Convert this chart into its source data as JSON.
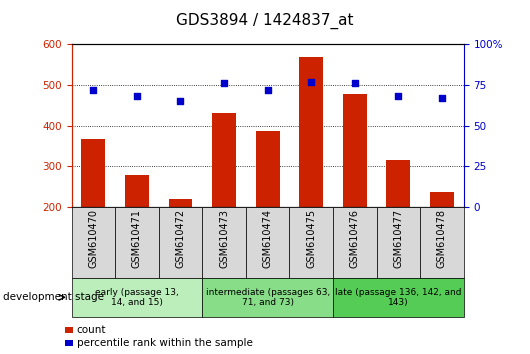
{
  "title": "GDS3894 / 1424837_at",
  "samples": [
    "GSM610470",
    "GSM610471",
    "GSM610472",
    "GSM610473",
    "GSM610474",
    "GSM610475",
    "GSM610476",
    "GSM610477",
    "GSM610478"
  ],
  "counts": [
    368,
    278,
    220,
    430,
    388,
    568,
    478,
    315,
    237
  ],
  "percentile_ranks": [
    72,
    68,
    65,
    76,
    72,
    77,
    76,
    68,
    67
  ],
  "ylim_left": [
    200,
    600
  ],
  "ylim_right": [
    0,
    100
  ],
  "yticks_left": [
    200,
    300,
    400,
    500,
    600
  ],
  "yticks_right": [
    0,
    25,
    50,
    75,
    100
  ],
  "bar_color": "#cc2200",
  "dot_color": "#0000cc",
  "bg_color": "#d8d8d8",
  "plot_bg": "#ffffff",
  "groups": [
    {
      "label": "early (passage 13,\n14, and 15)",
      "start": 0,
      "end": 3,
      "color": "#bbeebb"
    },
    {
      "label": "intermediate (passages 63,\n71, and 73)",
      "start": 3,
      "end": 6,
      "color": "#88dd88"
    },
    {
      "label": "late (passage 136, 142, and\n143)",
      "start": 6,
      "end": 9,
      "color": "#55cc55"
    }
  ],
  "dev_stage_label": "development stage",
  "legend_count": "count",
  "legend_percentile": "percentile rank within the sample",
  "title_fontsize": 11,
  "tick_fontsize": 7.5,
  "sample_fontsize": 7,
  "group_fontsize": 6.5
}
